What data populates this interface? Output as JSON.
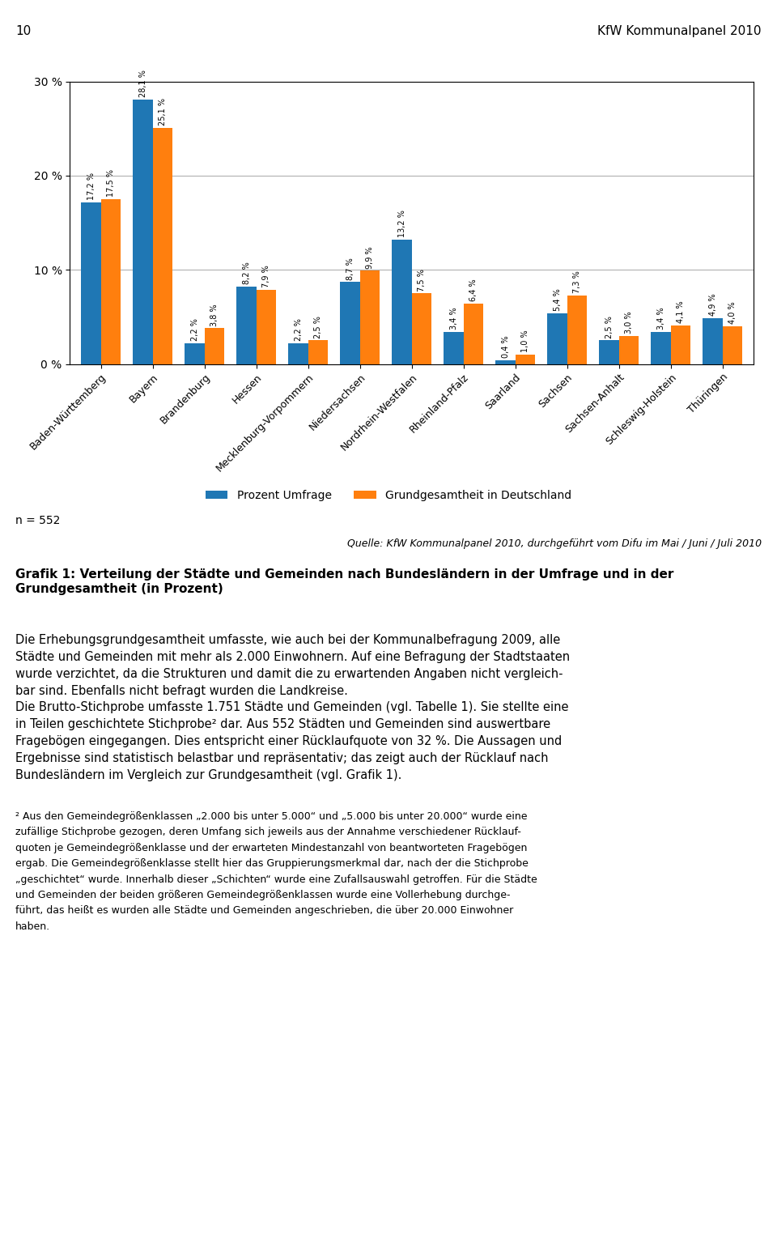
{
  "chart_data": {
    "type": "bar",
    "title": "Grafik 1: Verteilung der Städte und Gemeinden nach Bundesländern in der Umfrage und in der Grundgesamtheit (in Prozent)",
    "categories": [
      "Baden-Württemberg",
      "Bayern",
      "Brandenburg",
      "Hessen",
      "Mecklenburg-Vorpommern",
      "Niedersachsen",
      "Nordrhein-Westfalen",
      "Rheinland-Pfalz",
      "Saarland",
      "Sachsen",
      "Sachsen-Anhalt",
      "Schleswig-Holstein",
      "Thüringen"
    ],
    "series": [
      {
        "name": "Prozent Umfrage",
        "values": [
          17.2,
          28.1,
          2.2,
          8.2,
          2.2,
          8.7,
          13.2,
          3.4,
          0.4,
          5.4,
          2.5,
          3.4,
          4.9
        ],
        "value_labels": [
          "17,2 %",
          "28,1 %",
          "2,2 %",
          "8,2 %",
          "2,2 %",
          "8,7 %",
          "13,2 %",
          "3,4 %",
          "0,4 %",
          "5,4 %",
          "2,5 %",
          "3,4 %",
          "4,9 %"
        ]
      },
      {
        "name": "Grundgesamtheit in Deutschland",
        "values": [
          17.5,
          25.1,
          3.8,
          7.9,
          2.5,
          9.9,
          7.5,
          6.4,
          1.0,
          7.3,
          3.0,
          4.1,
          4.0
        ],
        "value_labels": [
          "17,5 %",
          "25,1 %",
          "3,8 %",
          "7,9 %",
          "2,5 %",
          "9,9 %",
          "7,5 %",
          "6,4 %",
          "1,0 %",
          "7,3 %",
          "3,0 %",
          "4,1 %",
          "4,0 %"
        ]
      }
    ],
    "ylim": [
      0,
      30
    ],
    "yticks": [
      {
        "value": 0,
        "label": "0 %"
      },
      {
        "value": 10,
        "label": "10 %"
      },
      {
        "value": 20,
        "label": "20 %"
      },
      {
        "value": 30,
        "label": "30 %"
      }
    ],
    "grid": true,
    "legend": "upper center",
    "data_labels": true,
    "annotations": [
      [
        "10",
        "KfW Kommunalpanel 2010"
      ],
      [
        "n = 552"
      ],
      [
        "Quelle: KfW Kommunalpanel 2010, durchgeführt vom Difu im Mai / Juni / Juli 2010"
      ],
      [
        "Die Erhebungsgrundgesamtheit umfasste, wie auch bei der Kommunalbefragung 2009, alle",
        "Städte und Gemeinden mit mehr als 2.000 Einwohnern. Auf eine Befragung der Stadtstaaten",
        "wurde verzichtet, da die Strukturen und damit die zu erwartenden Angaben nicht vergleich-",
        "bar sind. Ebenfalls nicht befragt wurden die Landkreise.",
        "Die Brutto-Stichprobe umfasste 1.751 Städte und Gemeinden (vgl. Tabelle 1). Sie stellte eine",
        "in Teilen geschichtete Stichprobe² dar. Aus 552 Städten und Gemeinden sind auswertbare",
        "Fragebögen eingegangen. Dies entspricht einer Rücklaufquote von 32 %. Die Aussagen und",
        "Ergebnisse sind statistisch belastbar und repräsentativ; das zeigt auch der Rücklauf nach",
        "Bundesländern im Vergleich zur Grundgesamtheit (vgl. Grafik 1)."
      ],
      [
        "² Aus den Gemeindegrößenklassen „2.000 bis unter 5.000“ und „5.000 bis unter 20.000“ wurde eine",
        "zufällige Stichprobe gezogen, deren Umfang sich jeweils aus der Annahme verschiedener Rücklauf-",
        "quoten je Gemeindegrößenklasse und der erwarteten Mindestanzahl von beantworteten Fragebögen",
        "ergab. Die Gemeindegrößenklasse stellt hier das Gruppierungsmerkmal dar, nach der die Stichprobe",
        "„geschichtet“ wurde. Innerhalb dieser „Schichten“ wurde eine Zufallsauswahl getroffen. Für die Städte",
        "und Gemeinden der beiden größeren Gemeindegrößenklassen wurde eine Vollerhebung durchge-",
        "führt, das heißt es wurden alle Städte und Gemeinden angeschrieben, die über 20.000 Einwohner",
        "haben."
      ]
    ]
  }
}
